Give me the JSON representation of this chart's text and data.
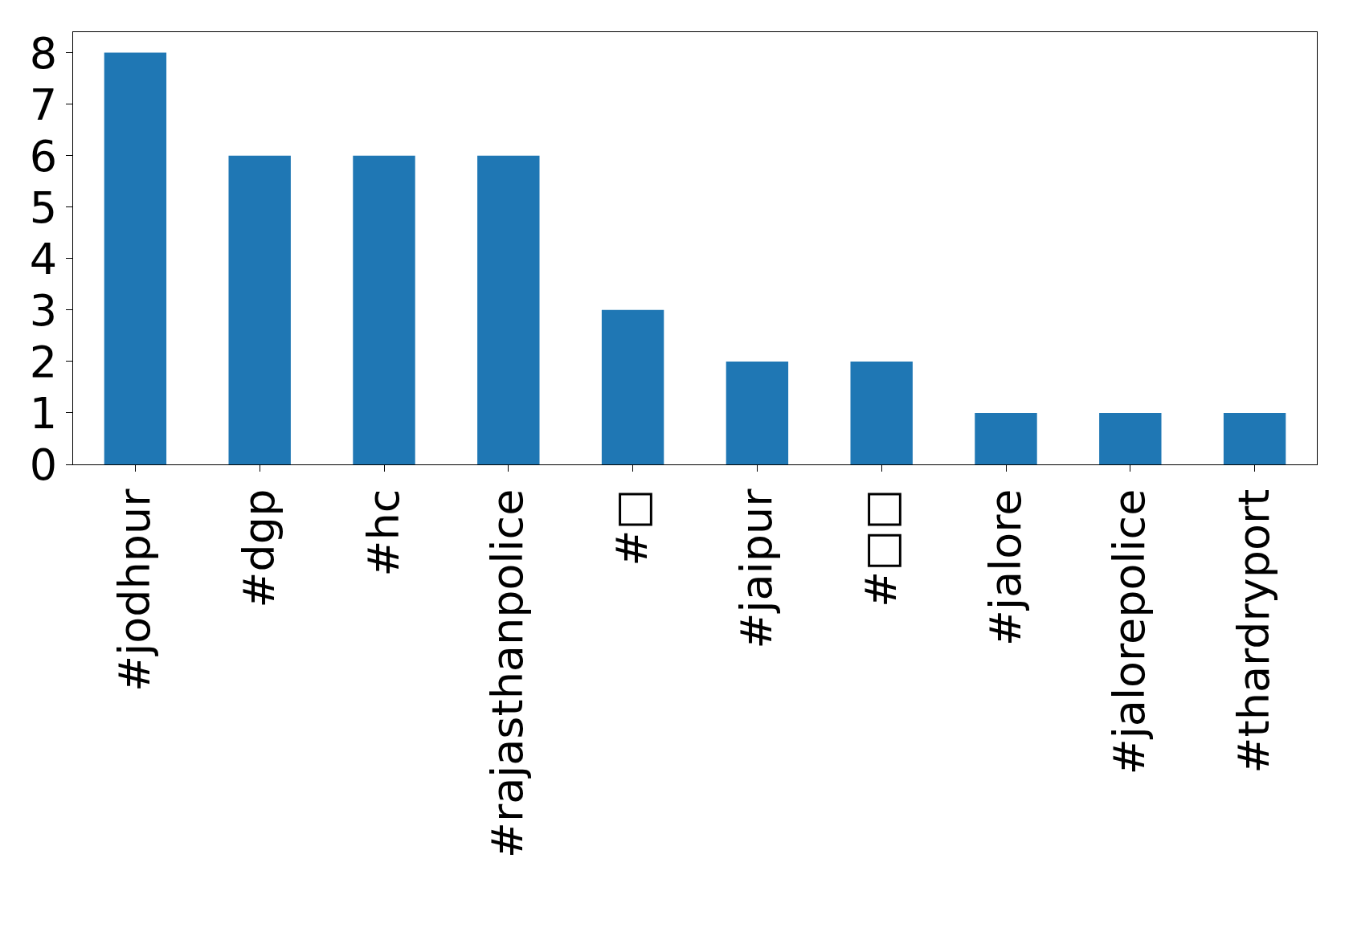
{
  "chart_data": {
    "type": "bar",
    "categories": [
      "#jodhpur",
      "#dgp",
      "#hc",
      "#rajasthanpolice",
      "#□",
      "#jaipur",
      "#□□",
      "#jalore",
      "#jalorepolice",
      "#thardryport"
    ],
    "values": [
      8,
      6,
      6,
      6,
      3,
      2,
      2,
      1,
      1,
      1
    ],
    "color": "#1f77b4",
    "ylim": [
      0,
      8.4
    ],
    "yticks": [
      0,
      1,
      2,
      3,
      4,
      5,
      6,
      7,
      8
    ]
  }
}
